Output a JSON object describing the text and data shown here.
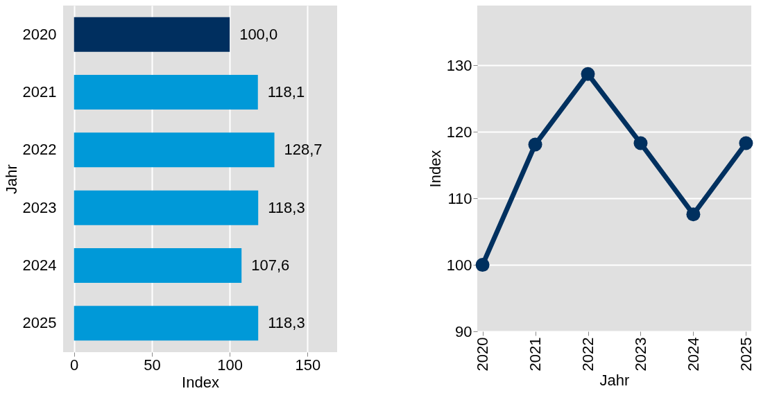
{
  "chart_data": [
    {
      "type": "bar",
      "orientation": "horizontal",
      "categories": [
        "2020",
        "2021",
        "2022",
        "2023",
        "2024",
        "2025"
      ],
      "values": [
        100.0,
        118.1,
        128.7,
        118.3,
        107.6,
        118.3
      ],
      "colors": [
        "#002f5f",
        "#0099d8",
        "#0099d8",
        "#0099d8",
        "#0099d8",
        "#0099d8"
      ],
      "value_labels": [
        "100,0",
        "118,1",
        "128,7",
        "118,3",
        "107,6",
        "118,3"
      ],
      "xlabel": "Index",
      "ylabel": "Jahr",
      "xlim": [
        -7,
        169
      ],
      "xticks": [
        0,
        50,
        100,
        150
      ],
      "grid": "x"
    },
    {
      "type": "line",
      "categories": [
        "2020",
        "2021",
        "2022",
        "2023",
        "2024",
        "2025"
      ],
      "series": [
        {
          "color": "#00305f",
          "values": [
            100.0,
            118.1,
            128.7,
            118.3,
            107.6,
            118.3
          ]
        }
      ],
      "xlabel": "Jahr",
      "ylabel": "Index",
      "ylim": [
        90,
        139
      ],
      "yticks": [
        90,
        100,
        110,
        120,
        130
      ],
      "grid": "y",
      "marker": "circle"
    }
  ]
}
